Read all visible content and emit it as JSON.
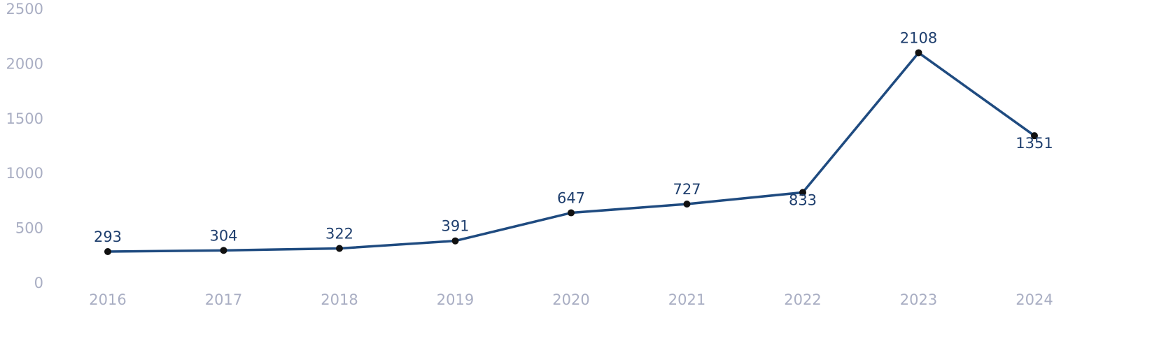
{
  "chart_data": {
    "type": "line",
    "categories": [
      "2016",
      "2017",
      "2018",
      "2019",
      "2020",
      "2021",
      "2022",
      "2023",
      "2024"
    ],
    "series": [
      {
        "color": "#1f4b80",
        "values": [
          293,
          304,
          322,
          391,
          647,
          727,
          833,
          2108,
          1351
        ]
      }
    ],
    "ylim": [
      0,
      2500
    ],
    "yticks": [
      0,
      500,
      1000,
      1500,
      2000,
      2500
    ],
    "grid": false
  }
}
